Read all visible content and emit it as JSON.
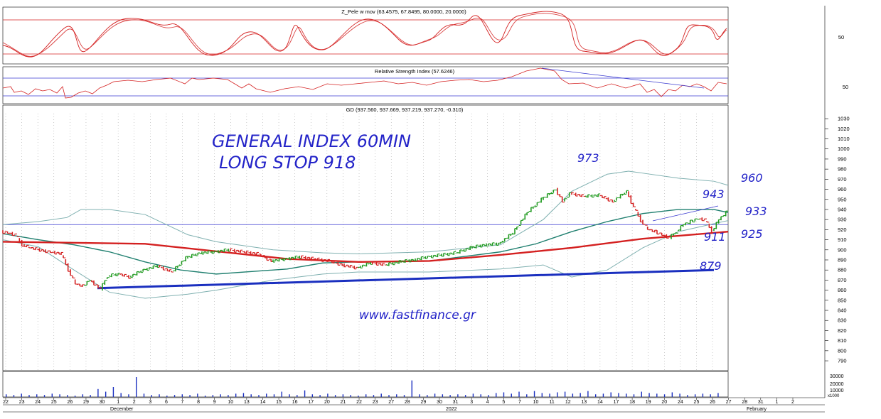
{
  "colors": {
    "price_up": "#1f9a1f",
    "price_down": "#d42020",
    "stochastic": "#d42020",
    "rsi": "#d42020",
    "rsi_guides": "#3a3ad0",
    "bollinger": "#7fb0b0",
    "ma_mid": "#1f7f6f",
    "red_trendline": "#d42020",
    "blue_trendline": "#1a2fbf",
    "annotation": "#2323c8"
  },
  "panels": {
    "stochastic": {
      "title": "Z_Pele w mov (63.4575, 67.8495, 80.0000, 20.0000)",
      "axis_label": "50"
    },
    "rsi": {
      "title": "Relative Strength Index (57.6246)",
      "axis_label": "50"
    },
    "price": {
      "title": "GD (937.560, 937.669, 937.219, 937.270, -0.310)"
    }
  },
  "annotations": {
    "headline_1": "GENERAL INDEX 60MIN",
    "headline_2": "LONG STOP 918",
    "website": "www.fastfinance.gr",
    "level_973": "973",
    "level_960": "960",
    "level_943": "943",
    "level_933": "933",
    "level_925": "925",
    "level_911": "911",
    "level_879": "879"
  },
  "x_labels": [
    "22",
    "23",
    "24",
    "25",
    "26",
    "29",
    "30",
    "1",
    "2",
    "3",
    "6",
    "7",
    "8",
    "9",
    "10",
    "13",
    "14",
    "15",
    "16",
    "17",
    "20",
    "21",
    "22",
    "23",
    "27",
    "28",
    "29",
    "30",
    "31",
    "3",
    "4",
    "5",
    "7",
    "10",
    "11",
    "12",
    "13",
    "14",
    "17",
    "18",
    "19",
    "20",
    "24",
    "25",
    "26",
    "27",
    "28",
    "31",
    "1",
    "2"
  ],
  "month_labels": [
    "December",
    "2022",
    "February"
  ],
  "volume_axis": [
    "30000",
    "20000",
    "10000",
    "x1000"
  ],
  "chart_data": {
    "type": "line",
    "price_axis": {
      "ticks": [
        1030,
        1020,
        1010,
        1000,
        990,
        980,
        970,
        960,
        950,
        940,
        930,
        920,
        910,
        900,
        890,
        880,
        870,
        860,
        850,
        840,
        830,
        820,
        810,
        800,
        790
      ],
      "ylim": [
        783,
        1035
      ]
    },
    "horizontal_level": 925,
    "series": [
      {
        "kind": "price",
        "x": [
          0,
          10,
          20,
          30,
          40,
          60,
          70,
          85,
          95,
          105,
          115,
          125,
          140,
          150,
          165,
          180,
          200,
          220,
          240,
          260,
          280,
          300,
          320,
          340,
          360,
          380,
          400,
          420,
          440,
          460,
          480,
          500,
          520,
          540,
          560,
          580,
          600,
          620,
          640,
          660,
          680,
          700,
          720,
          740,
          760,
          780,
          790,
          800,
          820,
          840,
          860,
          880,
          890,
          900,
          910,
          920,
          930,
          940,
          950,
          960,
          970,
          980,
          990,
          1000,
          1010,
          1020
        ],
        "y": [
          918,
          917,
          915,
          905,
          902,
          899,
          898,
          896,
          880,
          866,
          864,
          870,
          861,
          874,
          876,
          873,
          880,
          884,
          878,
          892,
          897,
          898,
          900,
          898,
          896,
          889,
          891,
          893,
          891,
          889,
          885,
          882,
          887,
          885,
          888,
          890,
          893,
          895,
          897,
          902,
          905,
          906,
          917,
          937,
          950,
          960,
          948,
          956,
          953,
          954,
          948,
          958,
          942,
          929,
          920,
          918,
          915,
          912,
          918,
          925,
          928,
          931,
          930,
          918,
          930,
          937
        ]
      },
      {
        "kind": "bollinger_upper",
        "x": [
          0,
          50,
          90,
          110,
          150,
          200,
          260,
          300,
          380,
          450,
          500,
          600,
          700,
          760,
          800,
          850,
          880,
          900,
          950,
          1000,
          1020
        ],
        "y": [
          925,
          928,
          932,
          940,
          940,
          935,
          915,
          908,
          900,
          897,
          896,
          898,
          905,
          930,
          958,
          975,
          978,
          976,
          971,
          968,
          964
        ]
      },
      {
        "kind": "bollinger_lower",
        "x": [
          0,
          50,
          100,
          150,
          200,
          260,
          300,
          380,
          450,
          500,
          600,
          700,
          760,
          800,
          820,
          850,
          900,
          950,
          1000,
          1020
        ],
        "y": [
          910,
          903,
          880,
          858,
          852,
          856,
          860,
          870,
          876,
          878,
          878,
          881,
          885,
          873,
          876,
          880,
          902,
          918,
          926,
          929
        ]
      },
      {
        "kind": "moving_average",
        "x": [
          0,
          50,
          100,
          150,
          200,
          250,
          300,
          400,
          450,
          500,
          600,
          700,
          750,
          800,
          850,
          900,
          950,
          1000,
          1020
        ],
        "y": [
          916,
          910,
          905,
          898,
          888,
          880,
          876,
          881,
          887,
          888,
          889,
          898,
          906,
          918,
          928,
          936,
          940,
          940,
          937
        ]
      },
      {
        "kind": "red_trendline",
        "x": [
          0,
          200,
          400,
          500,
          600,
          700,
          800,
          900,
          1020
        ],
        "y": [
          908,
          906,
          891,
          888,
          889,
          895,
          902,
          911,
          918
        ]
      },
      {
        "kind": "blue_trendline",
        "x": [
          133,
          1000
        ],
        "y": [
          862,
          880
        ]
      }
    ],
    "volume": [
      4,
      3,
      5,
      3,
      4,
      3,
      5,
      4,
      3,
      2,
      4,
      3,
      12,
      8,
      15,
      6,
      4,
      30,
      5,
      3,
      4,
      2,
      3,
      4,
      3,
      5,
      2,
      3,
      4,
      3,
      5,
      6,
      4,
      3,
      5,
      4,
      8,
      4,
      3,
      10,
      4,
      3,
      5,
      3,
      4,
      3,
      2,
      4,
      3,
      5,
      3,
      4,
      3,
      25,
      4,
      3,
      5,
      4,
      3,
      4,
      3,
      5,
      4,
      3,
      6,
      7,
      5,
      8,
      4,
      9,
      6,
      5,
      7,
      8,
      5,
      6,
      9,
      4,
      5,
      7,
      6,
      5,
      4,
      8,
      6,
      5,
      4,
      7,
      5,
      3,
      4,
      5,
      4,
      6
    ]
  }
}
